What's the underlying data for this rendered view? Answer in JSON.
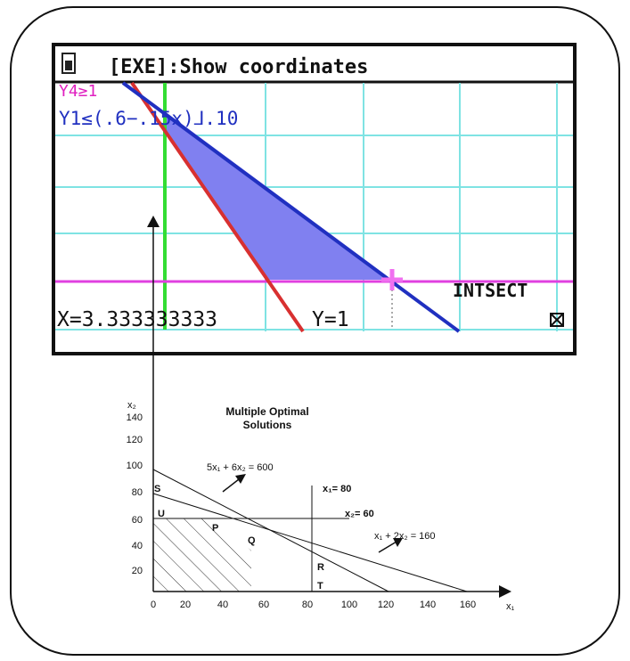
{
  "calculator": {
    "header": "[EXE]:Show coordinates",
    "graph_labels": [
      "Y4≥1",
      "Y1≤(.6−.15x)⅃.10"
    ],
    "mode": "INTSECT",
    "x_readout": "X=3.333333333",
    "y_readout": "Y=1"
  },
  "diagram": {
    "title": [
      "Multiple Optimal",
      "Solutions"
    ],
    "x_axis_label": "x₁",
    "y_axis_label": "x₂",
    "x_ticks": [
      "0",
      "20",
      "40",
      "60",
      "80",
      "100",
      "120",
      "140",
      "160"
    ],
    "y_ticks": [
      "20",
      "40",
      "60",
      "80",
      "100",
      "120",
      "140"
    ],
    "line_labels": [
      "5x₁ + 6x₂ = 600",
      "x₁= 80",
      "x₂= 60",
      "x₁ + 2x₂ = 160"
    ],
    "points": [
      "S",
      "U",
      "P",
      "Q",
      "R",
      "T"
    ]
  }
}
